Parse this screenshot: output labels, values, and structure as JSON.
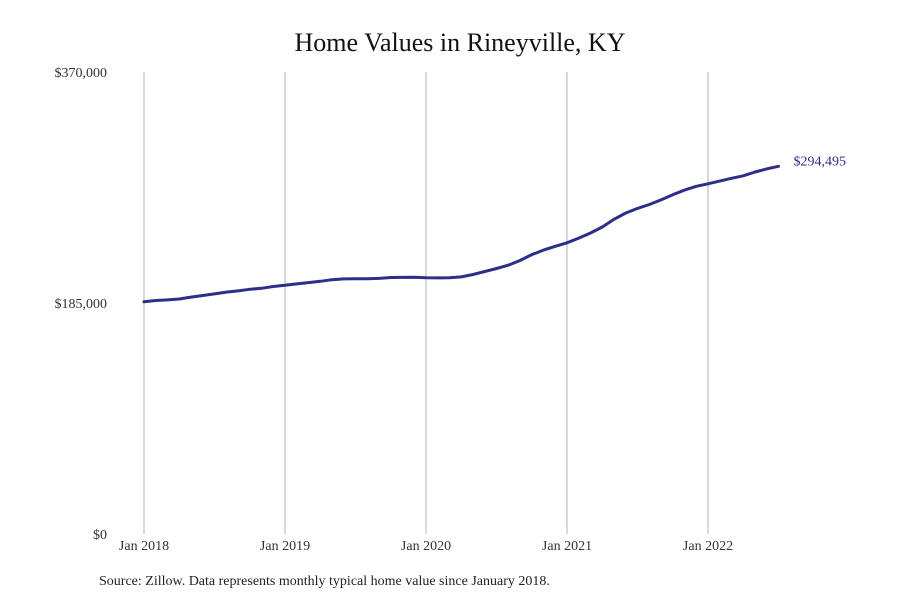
{
  "chart_data": {
    "type": "line",
    "title": "Home Values in Rineyville, KY",
    "xlabel": "",
    "ylabel": "",
    "y_ticks": [
      "$0",
      "$185,000",
      "$370,000"
    ],
    "y_tick_values": [
      0,
      185000,
      370000
    ],
    "ylim": [
      0,
      370000
    ],
    "x_ticks": [
      "Jan 2018",
      "Jan 2019",
      "Jan 2020",
      "Jan 2021",
      "Jan 2022"
    ],
    "x_tick_values": [
      "2018-01",
      "2019-01",
      "2020-01",
      "2021-01",
      "2022-01"
    ],
    "xlim": [
      "2018-01",
      "2022-07"
    ],
    "grid": "vertical",
    "legend": "none",
    "line_color": "#2e2d88",
    "end_label": "$294,495",
    "series": [
      {
        "x": [
          "2018-01",
          "2018-02",
          "2018-03",
          "2018-04",
          "2018-05",
          "2018-06",
          "2018-07",
          "2018-08",
          "2018-09",
          "2018-10",
          "2018-11",
          "2018-12",
          "2019-01",
          "2019-02",
          "2019-03",
          "2019-04",
          "2019-05",
          "2019-06",
          "2019-07",
          "2019-08",
          "2019-09",
          "2019-10",
          "2019-11",
          "2019-12",
          "2020-01",
          "2020-02",
          "2020-03",
          "2020-04",
          "2020-05",
          "2020-06",
          "2020-07",
          "2020-08",
          "2020-09",
          "2020-10",
          "2020-11",
          "2020-12",
          "2021-01",
          "2021-02",
          "2021-03",
          "2021-04",
          "2021-05",
          "2021-06",
          "2021-07",
          "2021-08",
          "2021-09",
          "2021-10",
          "2021-11",
          "2021-12",
          "2022-01",
          "2022-02",
          "2022-03",
          "2022-04",
          "2022-05",
          "2022-06",
          "2022-07"
        ],
        "values": [
          186000,
          187000,
          187500,
          188200,
          189700,
          191000,
          192300,
          193700,
          194700,
          196000,
          196800,
          198200,
          199200,
          200300,
          201300,
          202400,
          203700,
          204300,
          204500,
          204500,
          204700,
          205400,
          205500,
          205700,
          205300,
          205100,
          205300,
          205900,
          207800,
          210200,
          212600,
          215300,
          219000,
          223800,
          227400,
          230400,
          233200,
          237000,
          241100,
          245900,
          252000,
          257100,
          260800,
          263900,
          267600,
          271700,
          275400,
          278500,
          280500,
          282600,
          284900,
          286900,
          289900,
          292400,
          294495
        ]
      }
    ]
  },
  "source_note": "Source: Zillow. Data represents monthly typical home value since January 2018."
}
